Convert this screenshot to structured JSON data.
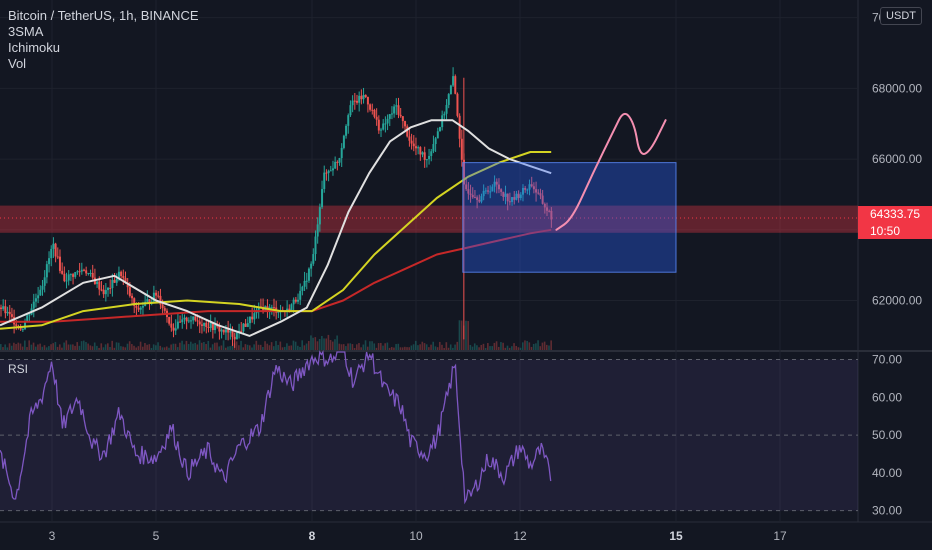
{
  "legend": {
    "title": "Bitcoin / TetherUS, 1h, BINANCE",
    "indicators": [
      "3SMA",
      "Ichimoku",
      "Vol"
    ]
  },
  "currency_button": "USDT",
  "last_price": "64333.75",
  "countdown": "10:50",
  "rsi_label": "RSI",
  "colors": {
    "background": "#131722",
    "up": "#26a69a",
    "down": "#ef5350",
    "sma_fast": "#e0e0e0",
    "sma_mid": "#d4d422",
    "sma_slow": "#c62828",
    "rsi_line": "#7e57c2",
    "zone_red": "#f23645",
    "box_blue": "#2962ff",
    "drawing_pink": "#f48fb1"
  },
  "chart_data": [
    {
      "type": "candlestick",
      "title": "Bitcoin / TetherUS, 1h, BINANCE",
      "ylim": [
        60600,
        70500
      ],
      "y_ticks": [
        62000,
        64000,
        66000,
        68000,
        70000
      ],
      "x_ticks": [
        "3",
        "5",
        "8",
        "10",
        "12",
        "15",
        "17"
      ],
      "x_tick_days": [
        3,
        5,
        8,
        10,
        12,
        15,
        17
      ],
      "x_range_days": [
        2.0,
        18.5
      ],
      "data_end_day": 12.6,
      "last_price": 64333.75,
      "price_path": [
        [
          2.0,
          61800
        ],
        [
          2.4,
          61200
        ],
        [
          2.8,
          62500
        ],
        [
          3.0,
          63600
        ],
        [
          3.2,
          62600
        ],
        [
          3.6,
          62900
        ],
        [
          4.0,
          62200
        ],
        [
          4.3,
          62800
        ],
        [
          4.6,
          61700
        ],
        [
          5.0,
          62200
        ],
        [
          5.3,
          61200
        ],
        [
          5.6,
          61500
        ],
        [
          6.0,
          61300
        ],
        [
          6.5,
          61000
        ],
        [
          7.0,
          61800
        ],
        [
          7.5,
          61700
        ],
        [
          7.8,
          62300
        ],
        [
          8.0,
          63200
        ],
        [
          8.2,
          65500
        ],
        [
          8.5,
          66000
        ],
        [
          8.7,
          67500
        ],
        [
          9.0,
          67800
        ],
        [
          9.3,
          66800
        ],
        [
          9.6,
          67500
        ],
        [
          9.9,
          66400
        ],
        [
          10.2,
          66000
        ],
        [
          10.5,
          67200
        ],
        [
          10.7,
          68300
        ],
        [
          10.8,
          67000
        ],
        [
          10.9,
          65200
        ],
        [
          11.2,
          64900
        ],
        [
          11.5,
          65300
        ],
        [
          11.8,
          64800
        ],
        [
          12.2,
          65300
        ],
        [
          12.4,
          64800
        ],
        [
          12.6,
          64334
        ]
      ],
      "sma_fast": [
        [
          2.0,
          61300
        ],
        [
          2.8,
          61800
        ],
        [
          3.6,
          62500
        ],
        [
          4.2,
          62700
        ],
        [
          5.0,
          62000
        ],
        [
          5.6,
          61700
        ],
        [
          6.2,
          61300
        ],
        [
          6.8,
          61000
        ],
        [
          7.4,
          61400
        ],
        [
          7.9,
          61800
        ],
        [
          8.3,
          63000
        ],
        [
          8.7,
          64500
        ],
        [
          9.1,
          65600
        ],
        [
          9.5,
          66500
        ],
        [
          9.9,
          66900
        ],
        [
          10.3,
          67100
        ],
        [
          10.7,
          67100
        ],
        [
          11.0,
          66800
        ],
        [
          11.4,
          66300
        ],
        [
          11.8,
          66000
        ],
        [
          12.2,
          65800
        ],
        [
          12.6,
          65600
        ]
      ],
      "sma_mid": [
        [
          2.0,
          61200
        ],
        [
          2.8,
          61300
        ],
        [
          3.6,
          61700
        ],
        [
          4.6,
          61900
        ],
        [
          5.6,
          62000
        ],
        [
          6.6,
          61900
        ],
        [
          7.4,
          61700
        ],
        [
          8.0,
          61700
        ],
        [
          8.6,
          62300
        ],
        [
          9.2,
          63300
        ],
        [
          9.8,
          64100
        ],
        [
          10.4,
          64900
        ],
        [
          11.0,
          65500
        ],
        [
          11.6,
          65900
        ],
        [
          12.2,
          66200
        ],
        [
          12.6,
          66200
        ]
      ],
      "sma_slow": [
        [
          2.0,
          61400
        ],
        [
          3.0,
          61400
        ],
        [
          4.0,
          61500
        ],
        [
          5.0,
          61600
        ],
        [
          6.0,
          61700
        ],
        [
          7.0,
          61700
        ],
        [
          8.0,
          61700
        ],
        [
          8.6,
          62000
        ],
        [
          9.2,
          62500
        ],
        [
          9.8,
          62900
        ],
        [
          10.4,
          63300
        ],
        [
          11.0,
          63500
        ],
        [
          11.6,
          63700
        ],
        [
          12.2,
          63900
        ],
        [
          12.6,
          64000
        ]
      ],
      "support_zone": [
        64000,
        64600
      ],
      "projection_box": {
        "x_days": [
          10.9,
          15.0
        ],
        "y": [
          62800,
          65900
        ]
      },
      "drawing_path": [
        [
          12.7,
          64000
        ],
        [
          13.0,
          64300
        ],
        [
          13.4,
          65600
        ],
        [
          13.8,
          66800
        ],
        [
          14.0,
          67400
        ],
        [
          14.2,
          67000
        ],
        [
          14.3,
          66100
        ],
        [
          14.5,
          66200
        ],
        [
          14.8,
          67100
        ]
      ]
    },
    {
      "type": "line",
      "title": "RSI",
      "ylim": [
        27,
        72
      ],
      "y_ticks": [
        30,
        40,
        50,
        60,
        70
      ],
      "levels": [
        70,
        50,
        30
      ],
      "rsi_path": [
        [
          2.0,
          45
        ],
        [
          2.3,
          33
        ],
        [
          2.6,
          55
        ],
        [
          2.8,
          60
        ],
        [
          3.0,
          70
        ],
        [
          3.2,
          52
        ],
        [
          3.5,
          60
        ],
        [
          3.8,
          47
        ],
        [
          4.0,
          45
        ],
        [
          4.3,
          56
        ],
        [
          4.6,
          45
        ],
        [
          5.0,
          44
        ],
        [
          5.3,
          52
        ],
        [
          5.6,
          40
        ],
        [
          6.0,
          46
        ],
        [
          6.3,
          38
        ],
        [
          6.6,
          47
        ],
        [
          7.0,
          52
        ],
        [
          7.3,
          68
        ],
        [
          7.6,
          63
        ],
        [
          7.9,
          69
        ],
        [
          8.1,
          71
        ],
        [
          8.4,
          70
        ],
        [
          8.6,
          73
        ],
        [
          8.8,
          64
        ],
        [
          9.1,
          72
        ],
        [
          9.4,
          62
        ],
        [
          9.7,
          58
        ],
        [
          9.9,
          48
        ],
        [
          10.2,
          45
        ],
        [
          10.4,
          49
        ],
        [
          10.6,
          60
        ],
        [
          10.75,
          69
        ],
        [
          10.85,
          50
        ],
        [
          10.95,
          32
        ],
        [
          11.1,
          35
        ],
        [
          11.4,
          44
        ],
        [
          11.7,
          39
        ],
        [
          12.0,
          47
        ],
        [
          12.2,
          42
        ],
        [
          12.4,
          46
        ],
        [
          12.6,
          39
        ]
      ]
    }
  ]
}
